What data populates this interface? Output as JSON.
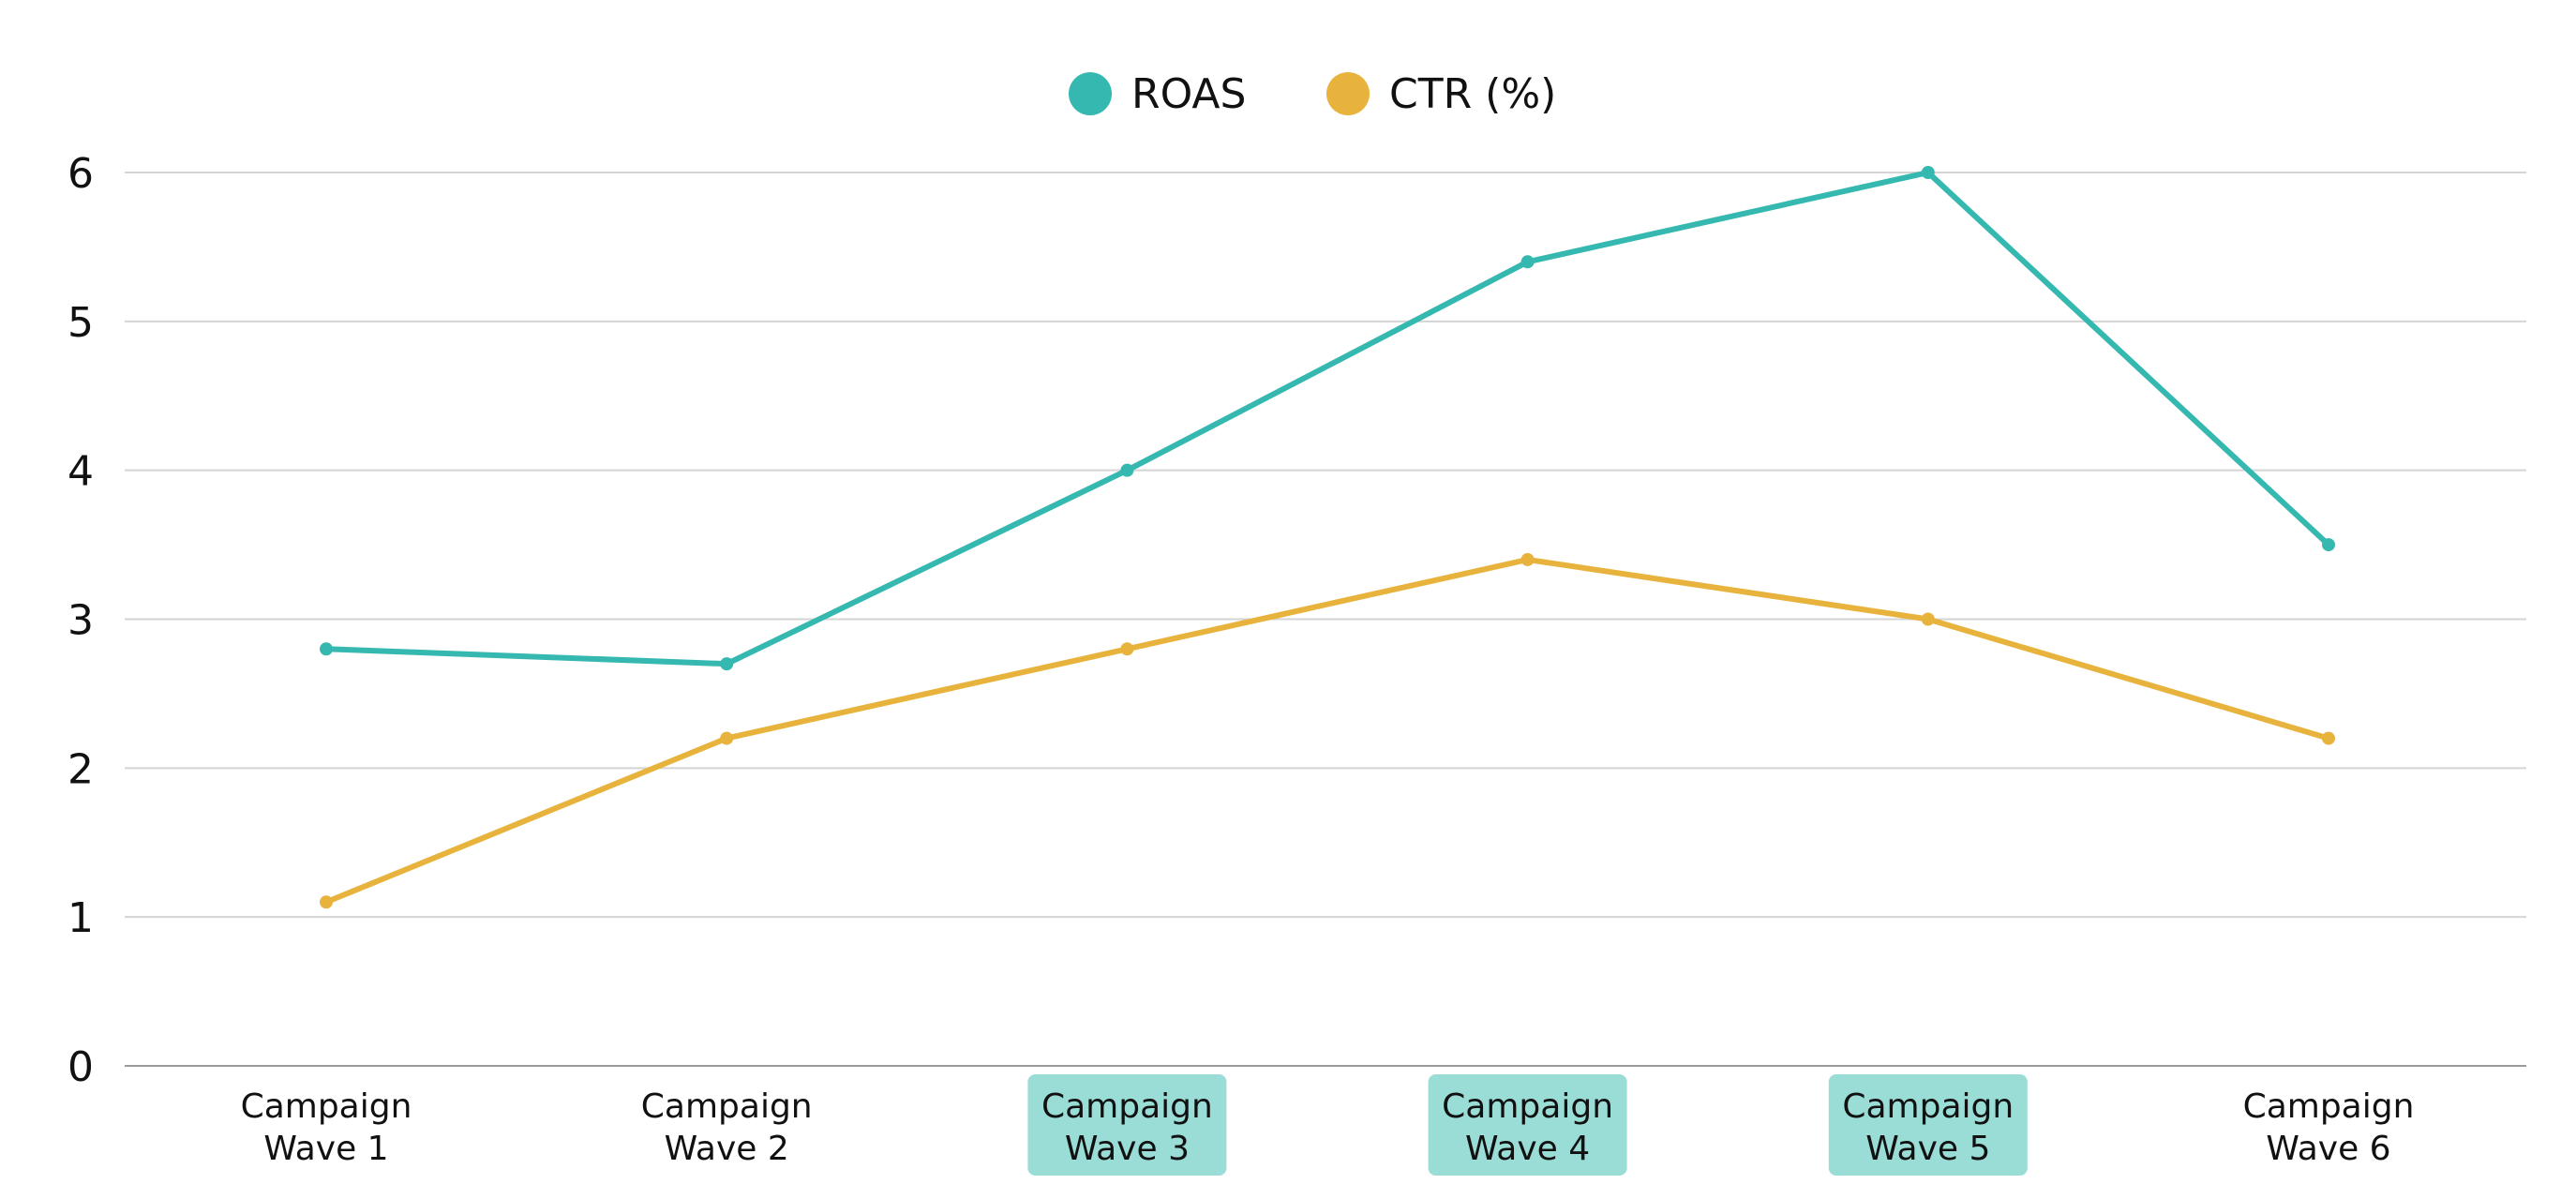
{
  "chart_data": {
    "type": "line",
    "title": "",
    "xlabel": "",
    "ylabel": "",
    "ylim": [
      0,
      6
    ],
    "yticks": [
      "0",
      "1",
      "2",
      "3",
      "4",
      "5",
      "6"
    ],
    "grid": true,
    "legend_position": "top-center",
    "categories": [
      [
        "Campaign",
        "Wave 1"
      ],
      [
        "Campaign",
        "Wave 2"
      ],
      [
        "Campaign",
        "Wave 3"
      ],
      [
        "Campaign",
        "Wave 4"
      ],
      [
        "Campaign",
        "Wave 5"
      ],
      [
        "Campaign",
        "Wave 6"
      ]
    ],
    "highlighted_categories": [
      2,
      3,
      4
    ],
    "highlight_color": "#9adcd6",
    "series": [
      {
        "name": "ROAS",
        "color": "#35b8b0",
        "values": [
          2.8,
          2.7,
          4.0,
          5.4,
          6.0,
          3.5
        ]
      },
      {
        "name": "CTR (%)",
        "color": "#e8b33c",
        "values": [
          1.1,
          2.2,
          2.8,
          3.4,
          3.0,
          2.2
        ]
      }
    ]
  }
}
